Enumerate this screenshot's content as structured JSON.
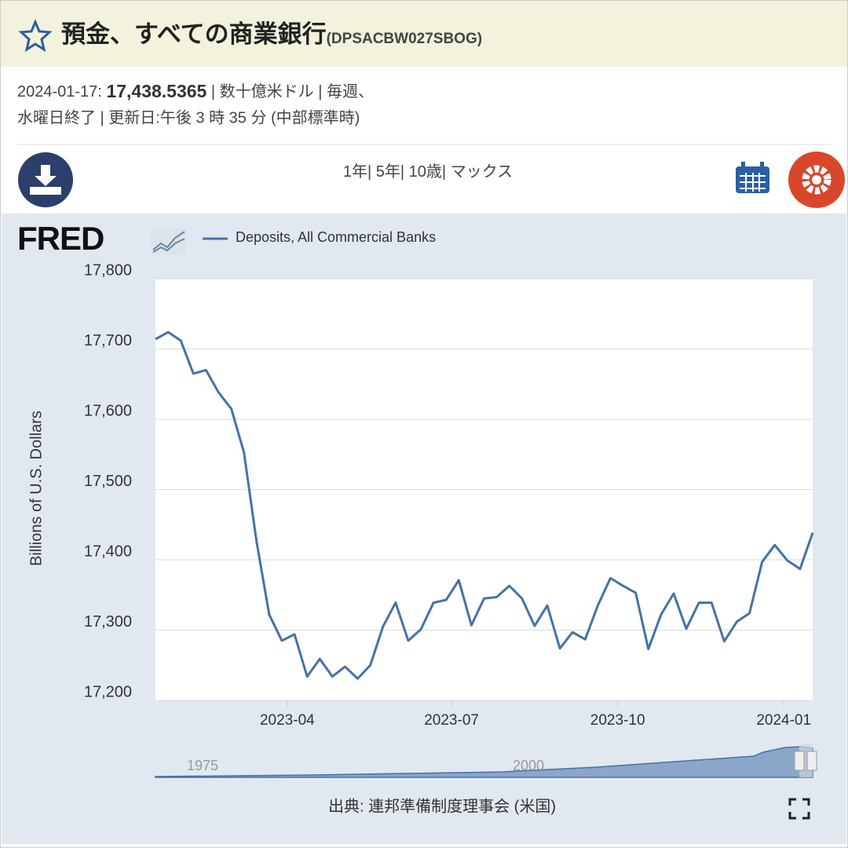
{
  "header": {
    "title": "預金、すべての商業銀行",
    "series_id": "(DPSACBW027SBOG)"
  },
  "info": {
    "date": "2024-01-17:",
    "value": "17,438.5365",
    "line1_rest": "| 数十億米ドル | 毎週、",
    "line2": "水曜日終了 | 更新日:午後 3 時 35 分 (中部標準時)"
  },
  "ranges": [
    "1年|",
    "5年|",
    "10歳|",
    "マックス"
  ],
  "chart_data": {
    "type": "line",
    "logo": "FRED",
    "ylabel": "Billions of U.S. Dollars",
    "x": [
      "2023-01-18",
      "2023-01-25",
      "2023-02-01",
      "2023-02-08",
      "2023-02-15",
      "2023-02-22",
      "2023-03-01",
      "2023-03-08",
      "2023-03-15",
      "2023-03-22",
      "2023-03-29",
      "2023-04-05",
      "2023-04-12",
      "2023-04-19",
      "2023-04-26",
      "2023-05-03",
      "2023-05-10",
      "2023-05-17",
      "2023-05-24",
      "2023-05-31",
      "2023-06-07",
      "2023-06-14",
      "2023-06-21",
      "2023-06-28",
      "2023-07-05",
      "2023-07-12",
      "2023-07-19",
      "2023-07-26",
      "2023-08-02",
      "2023-08-09",
      "2023-08-16",
      "2023-08-23",
      "2023-08-30",
      "2023-09-06",
      "2023-09-13",
      "2023-09-20",
      "2023-09-27",
      "2023-10-04",
      "2023-10-11",
      "2023-10-18",
      "2023-10-25",
      "2023-11-01",
      "2023-11-08",
      "2023-11-15",
      "2023-11-22",
      "2023-11-29",
      "2023-12-06",
      "2023-12-13",
      "2023-12-20",
      "2023-12-27",
      "2024-01-03",
      "2024-01-10",
      "2024-01-17"
    ],
    "series": [
      {
        "name": "Deposits, All Commercial Banks",
        "color": "#4572a7",
        "values": [
          17714,
          17724,
          17712,
          17665,
          17670,
          17638,
          17615,
          17553,
          17426,
          17322,
          17285,
          17294,
          17234,
          17259,
          17234,
          17248,
          17231,
          17250,
          17305,
          17339,
          17285,
          17301,
          17339,
          17343,
          17371,
          17307,
          17345,
          17347,
          17363,
          17345,
          17306,
          17335,
          17274,
          17297,
          17287,
          17335,
          17374,
          17363,
          17353,
          17273,
          17322,
          17352,
          17302,
          17339,
          17339,
          17284,
          17312,
          17324,
          17397,
          17421,
          17399,
          17387,
          17438.5365
        ]
      }
    ],
    "xlim": [
      "2023-01-18",
      "2024-01-17"
    ],
    "xticks": [
      {
        "value": "2023-04-01",
        "label": "2023-04"
      },
      {
        "value": "2023-07-01",
        "label": "2023-07"
      },
      {
        "value": "2023-10-01",
        "label": "2023-10"
      },
      {
        "value": "2024-01-01",
        "label": "2024-01"
      }
    ],
    "ylim": [
      17200,
      17800
    ],
    "yticks": [
      {
        "value": 17200,
        "label": "17,200"
      },
      {
        "value": 17300,
        "label": "17,300"
      },
      {
        "value": 17400,
        "label": "17,400"
      },
      {
        "value": 17500,
        "label": "17,500"
      },
      {
        "value": 17600,
        "label": "17,600"
      },
      {
        "value": 17700,
        "label": "17,700"
      },
      {
        "value": 17800,
        "label": "17,800"
      }
    ],
    "grid": true,
    "navigator_labels": [
      "1975",
      "2000"
    ]
  },
  "source": "出典: 連邦準備制度理事会 (米国)"
}
